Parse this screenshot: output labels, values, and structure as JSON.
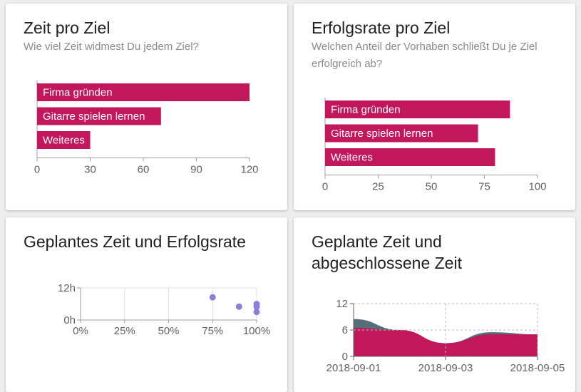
{
  "cards": [
    {
      "title": "Zeit pro Ziel",
      "subtitle": "Wie viel Zeit widmest Du jedem Ziel?",
      "chart_data": {
        "type": "bar",
        "orientation": "horizontal",
        "categories": [
          "Firma gründen",
          "Gitarre spielen lernen",
          "Weiteres"
        ],
        "values": [
          120,
          70,
          30
        ],
        "xlim": [
          0,
          120
        ],
        "xticks": [
          0,
          30,
          60,
          90,
          120
        ],
        "color": "#c2185b"
      }
    },
    {
      "title": "Erfolgsrate pro Ziel",
      "subtitle": "Welchen Anteil der Vorhaben schließt Du je Ziel erfolgreich ab?",
      "chart_data": {
        "type": "bar",
        "orientation": "horizontal",
        "categories": [
          "Firma gründen",
          "Gitarre spielen lernen",
          "Weiteres"
        ],
        "values": [
          87,
          72,
          80
        ],
        "xlim": [
          0,
          100
        ],
        "xticks": [
          0,
          25,
          50,
          75,
          100
        ],
        "color": "#c2185b"
      }
    },
    {
      "title": "Geplantes Zeit und Erfolgsrate",
      "chart_data": {
        "type": "scatter",
        "points": [
          {
            "x": 75,
            "y": 8.5
          },
          {
            "x": 90,
            "y": 5
          },
          {
            "x": 100,
            "y": 6
          },
          {
            "x": 100,
            "y": 5
          },
          {
            "x": 100,
            "y": 3
          }
        ],
        "xlim": [
          0,
          100
        ],
        "ylim": [
          0,
          12
        ],
        "xticks": [
          "0%",
          "25%",
          "50%",
          "75%",
          "100%"
        ],
        "yticks": [
          "12h",
          "0h"
        ],
        "grid": true,
        "color": "#8d7ed8"
      }
    },
    {
      "title": "Geplante Zeit und abgeschlossene Zeit",
      "chart_data": {
        "type": "area",
        "x": [
          "2018-09-01",
          "2018-09-02",
          "2018-09-03",
          "2018-09-04",
          "2018-09-05"
        ],
        "series": [
          {
            "color": "#546e7a",
            "values": [
              8.5,
              6,
              3,
              5.5,
              5
            ]
          },
          {
            "color": "#c2185b",
            "values": [
              6.5,
              6,
              3,
              5,
              5
            ]
          }
        ],
        "ylim": [
          0,
          12
        ],
        "yticks": [
          "0",
          "6",
          "12"
        ],
        "xticks": [
          "2018-09-01",
          "2018-09-03",
          "2018-09-05"
        ],
        "grid": "dashed"
      }
    }
  ]
}
